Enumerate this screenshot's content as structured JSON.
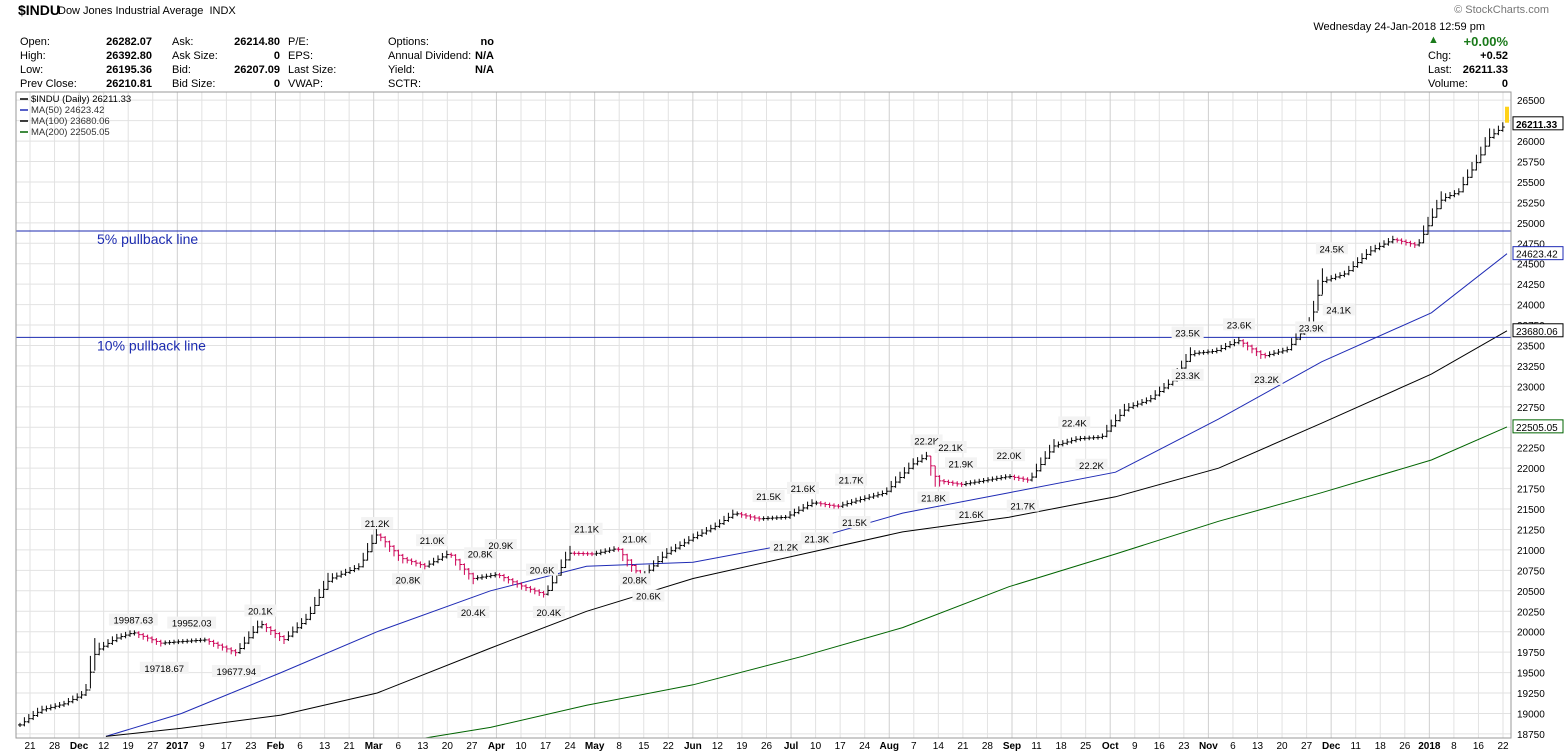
{
  "header": {
    "symbol": "$INDU",
    "name": "Dow Jones Industrial Average",
    "exchange": "INDX",
    "brand": "© StockCharts.com",
    "datetime": "Wednesday 24-Jan-2018 12:59 pm",
    "quote": [
      {
        "label": "Open:",
        "value": "26282.07"
      },
      {
        "label": "High:",
        "value": "26392.80"
      },
      {
        "label": "Low:",
        "value": "26195.36"
      },
      {
        "label": "Prev Close:",
        "value": "26210.81"
      }
    ],
    "quote2": [
      {
        "label": "Ask:",
        "value": "26214.80"
      },
      {
        "label": "Ask Size:",
        "value": "0"
      },
      {
        "label": "Bid:",
        "value": "26207.09"
      },
      {
        "label": "Bid Size:",
        "value": "0"
      }
    ],
    "quote3": [
      {
        "label": "P/E:",
        "value": ""
      },
      {
        "label": "EPS:",
        "value": ""
      },
      {
        "label": "Last Size:",
        "value": ""
      },
      {
        "label": "VWAP:",
        "value": ""
      }
    ],
    "quote4": [
      {
        "label": "Options:",
        "value": "no"
      },
      {
        "label": "Annual Dividend:",
        "value": "N/A"
      },
      {
        "label": "Yield:",
        "value": "N/A"
      },
      {
        "label": "SCTR:",
        "value": ""
      }
    ],
    "change_pct": "+0.00%",
    "chg_label": "Chg:",
    "chg_value": "+0.52",
    "last_label": "Last:",
    "last_value": "26211.33",
    "volume_label": "Volume:",
    "volume_value": "0"
  },
  "colors": {
    "price_up": "#000000",
    "price_down": "#cc0055",
    "ma50": "#1f2bb5",
    "ma100": "#000000",
    "ma200": "#006400",
    "pullback": "#1c2bb0",
    "grid": "#e2e2e2"
  },
  "chart_data": {
    "type": "line",
    "legend": [
      {
        "text": "$INDU (Daily) 26211.33",
        "color": "#000000"
      },
      {
        "text": "MA(50) 24623.42",
        "color": "#1f2bb5"
      },
      {
        "text": "MA(100) 23680.06",
        "color": "#000000"
      },
      {
        "text": "MA(200) 22505.05",
        "color": "#006400"
      }
    ],
    "ylim": [
      18700,
      26600
    ],
    "y_ticks": [
      18750,
      19000,
      19250,
      19500,
      19750,
      20000,
      20250,
      20500,
      20750,
      21000,
      21250,
      21500,
      21750,
      22000,
      22250,
      22500,
      22750,
      23000,
      23250,
      23500,
      23750,
      24000,
      24250,
      24500,
      24750,
      25000,
      25250,
      25500,
      25750,
      26000,
      26250,
      26500
    ],
    "x_tick_labels": [
      "21",
      "28",
      "Dec",
      "12",
      "19",
      "27",
      "2017",
      "9",
      "17",
      "23",
      "Feb",
      "6",
      "13",
      "21",
      "Mar",
      "6",
      "13",
      "20",
      "27",
      "Apr",
      "10",
      "17",
      "24",
      "May",
      "8",
      "15",
      "22",
      "Jun",
      "12",
      "19",
      "26",
      "Jul",
      "10",
      "17",
      "24",
      "Aug",
      "7",
      "14",
      "21",
      "28",
      "Sep",
      "11",
      "18",
      "25",
      "Oct",
      "9",
      "16",
      "23",
      "Nov",
      "6",
      "13",
      "20",
      "27",
      "Dec",
      "11",
      "18",
      "26",
      "2018",
      "8",
      "16",
      "22"
    ],
    "price_series": {
      "name": "$INDU (Daily)",
      "x": [
        "2016-11-17",
        "2016-11-23",
        "2016-11-30",
        "2016-12-06",
        "2016-12-09",
        "2016-12-15",
        "2016-12-20",
        "2016-12-28",
        "2017-01-03",
        "2017-01-10",
        "2017-01-19",
        "2017-01-26",
        "2017-02-02",
        "2017-02-09",
        "2017-02-15",
        "2017-02-24",
        "2017-03-01",
        "2017-03-08",
        "2017-03-15",
        "2017-03-22",
        "2017-03-29",
        "2017-04-05",
        "2017-04-12",
        "2017-04-19",
        "2017-04-26",
        "2017-05-03",
        "2017-05-10",
        "2017-05-17",
        "2017-05-24",
        "2017-06-01",
        "2017-06-08",
        "2017-06-13",
        "2017-06-20",
        "2017-06-28",
        "2017-07-06",
        "2017-07-13",
        "2017-07-20",
        "2017-07-27",
        "2017-08-04",
        "2017-08-08",
        "2017-08-11",
        "2017-08-18",
        "2017-08-25",
        "2017-09-01",
        "2017-09-07",
        "2017-09-14",
        "2017-09-21",
        "2017-09-28",
        "2017-10-05",
        "2017-10-12",
        "2017-10-19",
        "2017-10-24",
        "2017-10-31",
        "2017-11-07",
        "2017-11-14",
        "2017-11-21",
        "2017-11-28",
        "2017-12-01",
        "2017-12-08",
        "2017-12-15",
        "2017-12-22",
        "2017-12-29",
        "2018-01-05",
        "2018-01-10",
        "2018-01-16",
        "2018-01-19",
        "2018-01-24"
      ],
      "y": [
        18860,
        19040,
        19120,
        19250,
        19760,
        19920,
        19990,
        19860,
        19880,
        19900,
        19740,
        20100,
        19900,
        20180,
        20640,
        20800,
        21200,
        20900,
        20800,
        20960,
        20650,
        20700,
        20560,
        20450,
        20960,
        20950,
        21020,
        20660,
        20950,
        21150,
        21300,
        21450,
        21380,
        21400,
        21580,
        21530,
        21620,
        21700,
        22050,
        22150,
        21850,
        21800,
        21850,
        21900,
        21850,
        22270,
        22360,
        22380,
        22730,
        22840,
        23080,
        23400,
        23430,
        23560,
        23370,
        23450,
        23800,
        24280,
        24380,
        24650,
        24800,
        24720,
        25290,
        25380,
        25800,
        26050,
        26211
      ]
    },
    "ma_series": [
      {
        "name": "MA(50)",
        "last": 24623.42,
        "x": [
          "2016-12-12",
          "2017-01-03",
          "2017-02-01",
          "2017-03-01",
          "2017-04-03",
          "2017-05-01",
          "2017-06-01",
          "2017-07-03",
          "2017-08-01",
          "2017-09-01",
          "2017-10-02",
          "2017-11-01",
          "2017-12-01",
          "2018-01-02",
          "2018-01-24"
        ],
        "y": [
          18720,
          19000,
          19500,
          20000,
          20500,
          20800,
          20850,
          21100,
          21450,
          21700,
          21950,
          22600,
          23300,
          23900,
          24623
        ]
      },
      {
        "name": "MA(100)",
        "last": 23680.06,
        "x": [
          "2016-12-12",
          "2017-01-03",
          "2017-02-01",
          "2017-03-01",
          "2017-04-03",
          "2017-05-01",
          "2017-06-01",
          "2017-07-03",
          "2017-08-01",
          "2017-09-01",
          "2017-10-02",
          "2017-11-01",
          "2017-12-01",
          "2018-01-02",
          "2018-01-24"
        ],
        "y": [
          18720,
          18820,
          18980,
          19250,
          19800,
          20250,
          20650,
          20950,
          21220,
          21400,
          21650,
          22000,
          22550,
          23150,
          23680
        ]
      },
      {
        "name": "MA(200)",
        "last": 22505.05,
        "x": [
          "2017-03-15",
          "2017-04-03",
          "2017-05-01",
          "2017-06-01",
          "2017-07-03",
          "2017-08-01",
          "2017-09-01",
          "2017-10-02",
          "2017-11-01",
          "2017-12-01",
          "2018-01-02",
          "2018-01-24"
        ],
        "y": [
          18700,
          18830,
          19100,
          19350,
          19700,
          20050,
          20550,
          20950,
          21350,
          21700,
          22100,
          22505
        ]
      }
    ],
    "pullback_lines": [
      {
        "label": "5% pullback line",
        "y": 24900
      },
      {
        "label": "10% pullback line",
        "y": 23600
      }
    ],
    "axis_value_tags": [
      {
        "text": "26211.33",
        "y": 26211
      },
      {
        "text": "24623.42",
        "y": 24623
      },
      {
        "text": "23680.06",
        "y": 23680
      },
      {
        "text": "22505.05",
        "y": 22505
      }
    ],
    "annotations": [
      {
        "text": "19987.63",
        "x": "2016-12-20",
        "y": 19990,
        "pos": "above"
      },
      {
        "text": "19718.67",
        "x": "2016-12-29",
        "y": 19718,
        "pos": "below"
      },
      {
        "text": "19952.03",
        "x": "2017-01-06",
        "y": 19952,
        "pos": "above"
      },
      {
        "text": "19677.94",
        "x": "2017-01-19",
        "y": 19678,
        "pos": "below"
      },
      {
        "text": "20.1K",
        "x": "2017-01-26",
        "y": 20100,
        "pos": "above"
      },
      {
        "text": "21.2K",
        "x": "2017-03-01",
        "y": 21170,
        "pos": "above"
      },
      {
        "text": "20.8K",
        "x": "2017-03-10",
        "y": 20800,
        "pos": "below"
      },
      {
        "text": "21.0K",
        "x": "2017-03-17",
        "y": 20960,
        "pos": "above"
      },
      {
        "text": "20.4K",
        "x": "2017-03-29",
        "y": 20400,
        "pos": "below"
      },
      {
        "text": "20.8K",
        "x": "2017-03-31",
        "y": 20800,
        "pos": "above"
      },
      {
        "text": "20.9K",
        "x": "2017-04-06",
        "y": 20900,
        "pos": "above"
      },
      {
        "text": "20.6K",
        "x": "2017-04-18",
        "y": 20600,
        "pos": "above"
      },
      {
        "text": "20.4K",
        "x": "2017-04-20",
        "y": 20400,
        "pos": "below"
      },
      {
        "text": "21.1K",
        "x": "2017-05-01",
        "y": 21100,
        "pos": "above"
      },
      {
        "text": "21.0K",
        "x": "2017-05-15",
        "y": 20980,
        "pos": "above"
      },
      {
        "text": "20.8K",
        "x": "2017-05-15",
        "y": 20800,
        "pos": "below"
      },
      {
        "text": "20.6K",
        "x": "2017-05-19",
        "y": 20600,
        "pos": "below"
      },
      {
        "text": "21.5K",
        "x": "2017-06-23",
        "y": 21500,
        "pos": "above"
      },
      {
        "text": "21.2K",
        "x": "2017-06-28",
        "y": 21200,
        "pos": "below"
      },
      {
        "text": "21.6K",
        "x": "2017-07-03",
        "y": 21600,
        "pos": "above"
      },
      {
        "text": "21.3K",
        "x": "2017-07-07",
        "y": 21300,
        "pos": "below"
      },
      {
        "text": "21.7K",
        "x": "2017-07-17",
        "y": 21700,
        "pos": "above"
      },
      {
        "text": "21.5K",
        "x": "2017-07-18",
        "y": 21500,
        "pos": "below"
      },
      {
        "text": "22.2K",
        "x": "2017-08-08",
        "y": 22180,
        "pos": "above"
      },
      {
        "text": "21.8K",
        "x": "2017-08-10",
        "y": 21800,
        "pos": "below"
      },
      {
        "text": "22.1K",
        "x": "2017-08-15",
        "y": 22100,
        "pos": "above"
      },
      {
        "text": "21.9K",
        "x": "2017-08-18",
        "y": 21900,
        "pos": "above"
      },
      {
        "text": "21.6K",
        "x": "2017-08-21",
        "y": 21600,
        "pos": "below"
      },
      {
        "text": "22.0K",
        "x": "2017-09-01",
        "y": 22000,
        "pos": "above"
      },
      {
        "text": "21.7K",
        "x": "2017-09-05",
        "y": 21700,
        "pos": "below"
      },
      {
        "text": "22.4K",
        "x": "2017-09-20",
        "y": 22400,
        "pos": "above"
      },
      {
        "text": "22.2K",
        "x": "2017-09-25",
        "y": 22200,
        "pos": "below"
      },
      {
        "text": "23.5K",
        "x": "2017-10-23",
        "y": 23500,
        "pos": "above"
      },
      {
        "text": "23.3K",
        "x": "2017-10-23",
        "y": 23300,
        "pos": "below"
      },
      {
        "text": "23.6K",
        "x": "2017-11-07",
        "y": 23600,
        "pos": "above"
      },
      {
        "text": "23.2K",
        "x": "2017-11-15",
        "y": 23250,
        "pos": "below"
      },
      {
        "text": "23.9K",
        "x": "2017-11-28",
        "y": 23880,
        "pos": "below"
      },
      {
        "text": "24.5K",
        "x": "2017-12-04",
        "y": 24530,
        "pos": "above"
      },
      {
        "text": "24.1K",
        "x": "2017-12-06",
        "y": 24100,
        "pos": "below"
      }
    ]
  }
}
